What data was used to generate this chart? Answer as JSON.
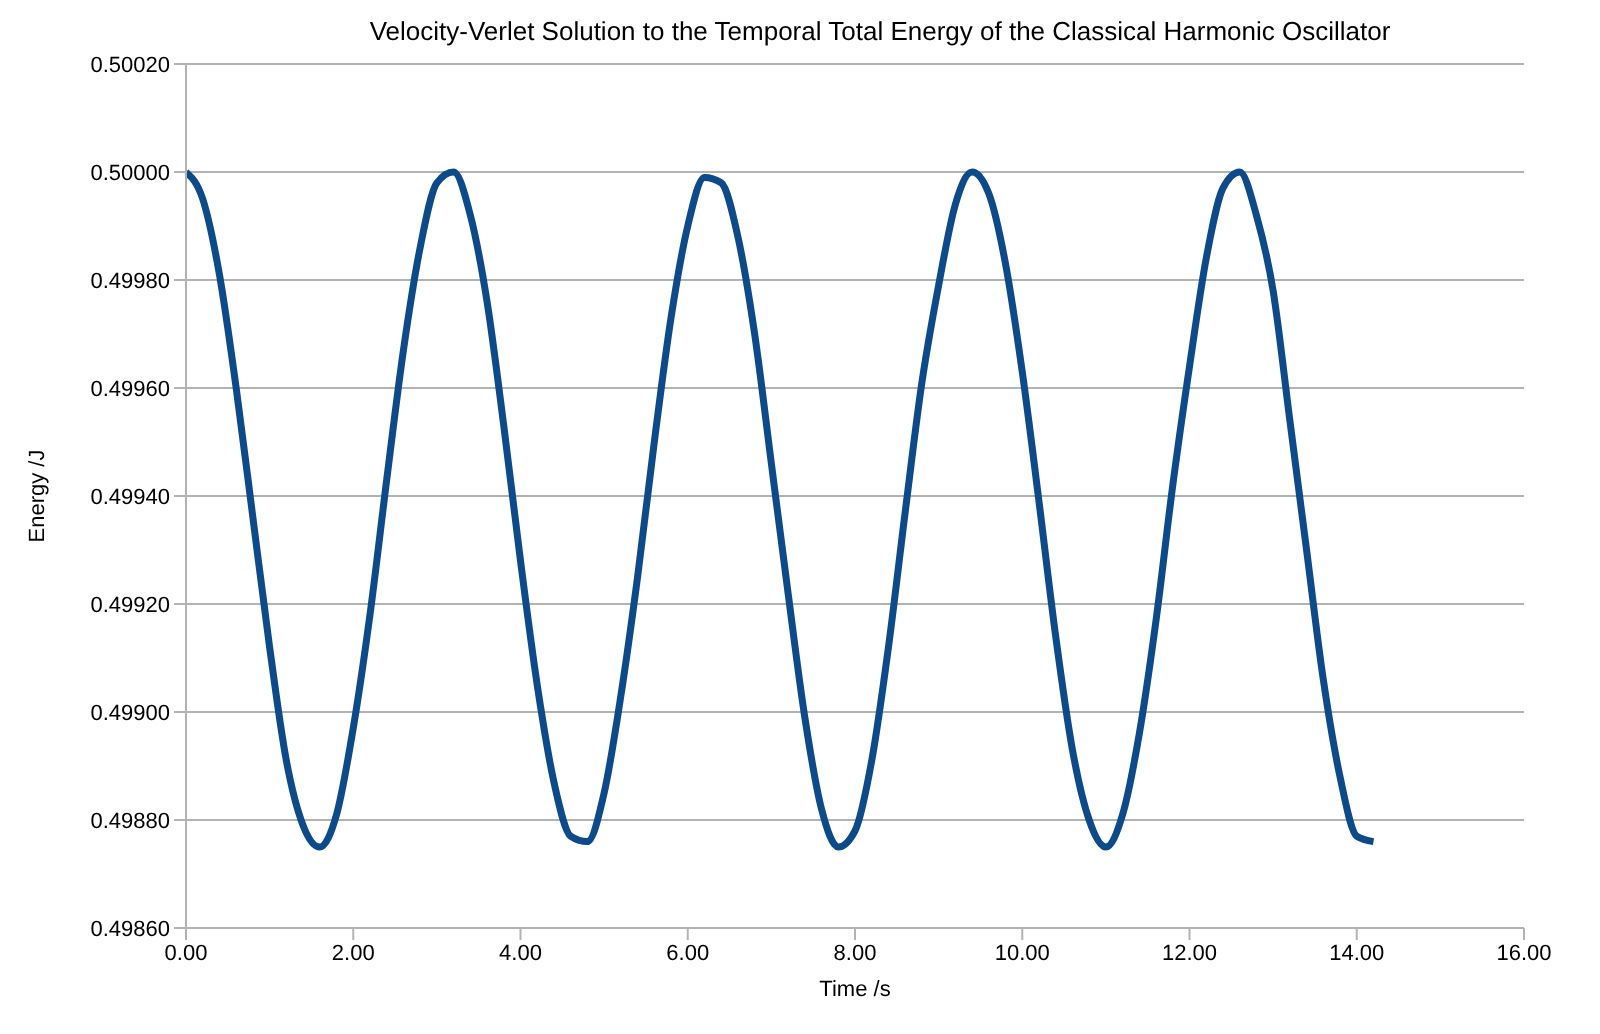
{
  "chart_data": {
    "type": "line",
    "title": "Velocity-Verlet Solution to the Temporal Total Energy of the Classical Harmonic Oscillator",
    "xlabel": "Time /s",
    "ylabel": "Energy /J",
    "x": [
      0,
      0.2,
      0.4,
      0.6,
      0.8,
      1.0,
      1.2,
      1.4,
      1.6,
      1.8,
      2.0,
      2.2,
      2.4,
      2.6,
      2.8,
      3.0,
      3.2,
      3.4,
      3.6,
      3.8,
      4.0,
      4.2,
      4.4,
      4.6,
      4.8,
      5.0,
      5.2,
      5.4,
      5.6,
      5.8,
      6.0,
      6.2,
      6.4,
      6.6,
      6.8,
      7.0,
      7.2,
      7.4,
      7.6,
      7.8,
      8.0,
      8.2,
      8.4,
      8.6,
      8.8,
      9.0,
      9.2,
      9.4,
      9.6,
      9.8,
      10.0,
      10.2,
      10.4,
      10.6,
      10.8,
      11.0,
      11.2,
      11.4,
      11.6,
      11.8,
      12.0,
      12.2,
      12.4,
      12.6,
      12.8,
      13.0,
      13.2,
      13.4,
      13.6,
      13.8,
      14.0,
      14.2
    ],
    "series": [
      {
        "color": "#0d4a8a",
        "values": [
          0.5,
          0.49995,
          0.49981,
          0.4996,
          0.49936,
          0.49912,
          0.49891,
          0.49879,
          0.49875,
          0.49881,
          0.49897,
          0.49918,
          0.49943,
          0.49967,
          0.49986,
          0.49998,
          0.5,
          0.49992,
          0.49976,
          0.49953,
          0.49928,
          0.49905,
          0.49887,
          0.49877,
          0.49876,
          0.49885,
          0.49903,
          0.49925,
          0.4995,
          0.49973,
          0.4999,
          0.49999,
          0.49998,
          0.49988,
          0.4997,
          0.49946,
          0.49922,
          0.49899,
          0.49882,
          0.49875,
          0.49878,
          0.49891,
          0.49912,
          0.49937,
          0.49961,
          0.49979,
          0.49994,
          0.5,
          0.49996,
          0.49983,
          0.49963,
          0.49939,
          0.49914,
          0.49893,
          0.4988,
          0.49875,
          0.49881,
          0.49896,
          0.49917,
          0.49942,
          0.49964,
          0.49984,
          0.49997,
          0.5,
          0.49992,
          0.49978,
          0.49954,
          0.4993,
          0.49906,
          0.49888,
          0.49877,
          0.49876
        ]
      }
    ],
    "xlim": [
      0,
      16
    ],
    "xticks": [
      {
        "value": 0,
        "label": "0.00"
      },
      {
        "value": 2,
        "label": "2.00"
      },
      {
        "value": 4,
        "label": "4.00"
      },
      {
        "value": 6,
        "label": "6.00"
      },
      {
        "value": 8,
        "label": "8.00"
      },
      {
        "value": 10,
        "label": "10.00"
      },
      {
        "value": 12,
        "label": "12.00"
      },
      {
        "value": 14,
        "label": "14.00"
      },
      {
        "value": 16,
        "label": "16.00"
      }
    ],
    "ylim": [
      0.4986,
      0.5002
    ],
    "yticks": [
      {
        "value": 0.4986,
        "label": "0.49860"
      },
      {
        "value": 0.4988,
        "label": "0.49880"
      },
      {
        "value": 0.499,
        "label": "0.49900"
      },
      {
        "value": 0.4992,
        "label": "0.49920"
      },
      {
        "value": 0.4994,
        "label": "0.49940"
      },
      {
        "value": 0.4996,
        "label": "0.49960"
      },
      {
        "value": 0.4998,
        "label": "0.49980"
      },
      {
        "value": 0.5,
        "label": "0.50000"
      },
      {
        "value": 0.5002,
        "label": "0.50020"
      }
    ],
    "grid": "y",
    "legend": false,
    "marker": "none",
    "line_style": "solid"
  }
}
